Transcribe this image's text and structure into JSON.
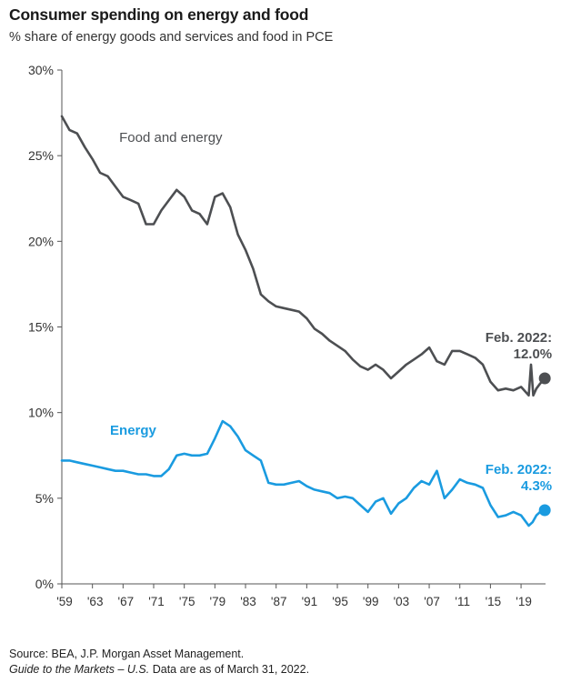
{
  "title": "Consumer spending on energy and food",
  "subtitle": "% share of energy goods and services and food in PCE",
  "footer": {
    "source": "Source: BEA, J.P. Morgan Asset Management.",
    "guide_italic": "Guide to the Markets – U.S.",
    "guide_rest": " Data are as of March 31, 2022."
  },
  "colors": {
    "food_energy": "#4d4f52",
    "energy": "#1a9be0"
  },
  "chart_data": {
    "type": "line",
    "xlabel": "",
    "ylabel": "",
    "xlim": [
      1959,
      2022.2
    ],
    "ylim": [
      0,
      30
    ],
    "grid": false,
    "y_ticks": [
      0,
      5,
      10,
      15,
      20,
      25,
      30
    ],
    "y_tick_labels": [
      "0%",
      "5%",
      "10%",
      "15%",
      "20%",
      "25%",
      "30%"
    ],
    "x_ticks": [
      1959,
      1963,
      1967,
      1971,
      1975,
      1979,
      1983,
      1987,
      1991,
      1995,
      1999,
      2003,
      2007,
      2011,
      2015,
      2019
    ],
    "x_tick_labels": [
      "'59",
      "'63",
      "'67",
      "'71",
      "'75",
      "'79",
      "'83",
      "'87",
      "'91",
      "'95",
      "'99",
      "'03",
      "'07",
      "'11",
      "'15",
      "'19"
    ],
    "series": [
      {
        "name": "Food and energy",
        "color": "#4d4f52",
        "x": [
          1959,
          1960,
          1961,
          1962,
          1963,
          1964,
          1965,
          1966,
          1967,
          1968,
          1969,
          1970,
          1971,
          1972,
          1973,
          1974,
          1975,
          1976,
          1977,
          1978,
          1979,
          1980,
          1981,
          1982,
          1983,
          1984,
          1985,
          1986,
          1987,
          1988,
          1989,
          1990,
          1991,
          1992,
          1993,
          1994,
          1995,
          1996,
          1997,
          1998,
          1999,
          2000,
          2001,
          2002,
          2003,
          2004,
          2005,
          2006,
          2007,
          2008,
          2009,
          2010,
          2011,
          2012,
          2013,
          2014,
          2015,
          2016,
          2017,
          2018,
          2019,
          2020,
          2020.3,
          2020.6,
          2021,
          2021.5,
          2022.1
        ],
        "y": [
          27.3,
          26.5,
          26.3,
          25.5,
          24.8,
          24.0,
          23.8,
          23.2,
          22.6,
          22.4,
          22.2,
          21.0,
          21.0,
          21.8,
          22.4,
          23.0,
          22.6,
          21.8,
          21.6,
          21.0,
          22.6,
          22.8,
          22.0,
          20.4,
          19.5,
          18.4,
          16.9,
          16.5,
          16.2,
          16.1,
          16.0,
          15.9,
          15.5,
          14.9,
          14.6,
          14.2,
          13.9,
          13.6,
          13.1,
          12.7,
          12.5,
          12.8,
          12.5,
          12.0,
          12.4,
          12.8,
          13.1,
          13.4,
          13.8,
          13.0,
          12.8,
          13.6,
          13.6,
          13.4,
          13.2,
          12.8,
          11.8,
          11.3,
          11.4,
          11.3,
          11.5,
          11.0,
          12.8,
          11.0,
          11.4,
          11.7,
          12.0
        ]
      },
      {
        "name": "Energy",
        "color": "#1a9be0",
        "x": [
          1959,
          1960,
          1961,
          1962,
          1963,
          1964,
          1965,
          1966,
          1967,
          1968,
          1969,
          1970,
          1971,
          1972,
          1973,
          1974,
          1975,
          1976,
          1977,
          1978,
          1979,
          1980,
          1981,
          1982,
          1983,
          1984,
          1985,
          1986,
          1987,
          1988,
          1989,
          1990,
          1991,
          1992,
          1993,
          1994,
          1995,
          1996,
          1997,
          1998,
          1999,
          2000,
          2001,
          2002,
          2003,
          2004,
          2005,
          2006,
          2007,
          2008,
          2009,
          2010,
          2011,
          2012,
          2013,
          2014,
          2015,
          2016,
          2017,
          2018,
          2019,
          2020,
          2020.5,
          2021,
          2021.5,
          2022.1
        ],
        "y": [
          7.2,
          7.2,
          7.1,
          7.0,
          6.9,
          6.8,
          6.7,
          6.6,
          6.6,
          6.5,
          6.4,
          6.4,
          6.3,
          6.3,
          6.7,
          7.5,
          7.6,
          7.5,
          7.5,
          7.6,
          8.5,
          9.5,
          9.2,
          8.6,
          7.8,
          7.5,
          7.2,
          5.9,
          5.8,
          5.8,
          5.9,
          6.0,
          5.7,
          5.5,
          5.4,
          5.3,
          5.0,
          5.1,
          5.0,
          4.6,
          4.2,
          4.8,
          5.0,
          4.1,
          4.7,
          5.0,
          5.6,
          6.0,
          5.8,
          6.6,
          5.0,
          5.5,
          6.1,
          5.9,
          5.8,
          5.6,
          4.6,
          3.9,
          4.0,
          4.2,
          4.0,
          3.4,
          3.6,
          4.0,
          4.2,
          4.3
        ]
      }
    ],
    "annotations": [
      {
        "series": "Food and energy",
        "text": "Food  and energy",
        "x": 1966.5,
        "y": 25.8,
        "kind": "series-label"
      },
      {
        "series": "Energy",
        "text": "Energy",
        "x": 1965.3,
        "y": 8.7,
        "kind": "series-label"
      },
      {
        "series": "Food and energy",
        "text": "Feb. 2022:",
        "text2": "12.0%",
        "x": 2022.1,
        "y": 12.0,
        "kind": "endpoint"
      },
      {
        "series": "Energy",
        "text": "Feb. 2022:",
        "text2": "4.3%",
        "x": 2022.1,
        "y": 4.3,
        "kind": "endpoint"
      }
    ]
  }
}
